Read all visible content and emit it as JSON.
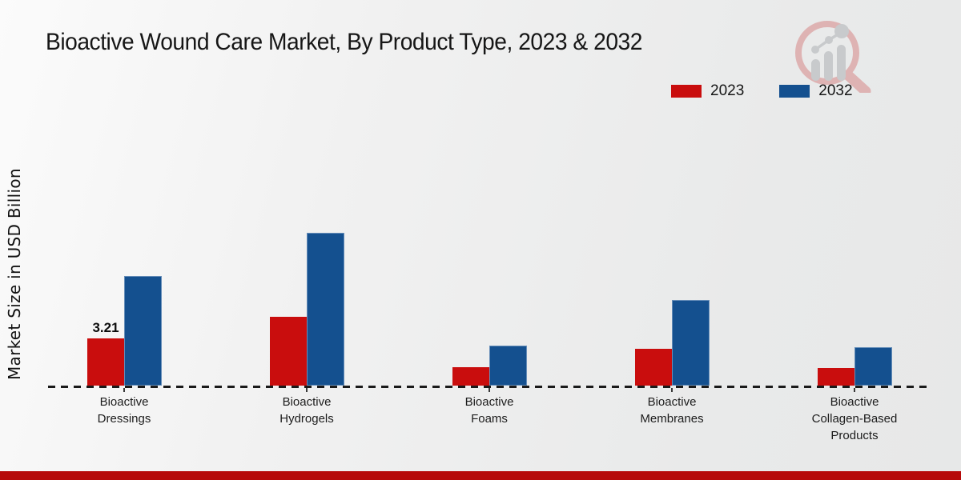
{
  "page": {
    "footer_bar_color": "#b60a0a",
    "logo_icon": "magnifier-bar-chart-logo",
    "background_top": "#fbfbfb",
    "background_bottom": "#e7e8e8"
  },
  "chart_data": {
    "type": "bar",
    "title": "Bioactive Wound Care Market, By Product Type, 2023 & 2032",
    "xlabel": "",
    "ylabel": "Market Size in USD Billion",
    "units": "USD Billion",
    "categories": [
      "Bioactive\nDressings",
      "Bioactive\nHydrogels",
      "Bioactive\nFoams",
      "Bioactive\nMembranes",
      "Bioactive\nCollagen-Based\nProducts"
    ],
    "series": [
      {
        "name": "2023",
        "color": "#c90d0d",
        "values": [
          3.21,
          4.68,
          1.25,
          2.5,
          1.2
        ],
        "shown_labels": [
          "3.21",
          null,
          null,
          null,
          null
        ]
      },
      {
        "name": "2032",
        "color": "#14508f",
        "values": [
          7.45,
          10.4,
          2.72,
          5.82,
          2.61
        ],
        "shown_labels": [
          null,
          null,
          null,
          null,
          null
        ]
      }
    ],
    "ylim": [
      0,
      11
    ],
    "grid": false,
    "legend_position": "top-right",
    "baseline_style": "dashed",
    "axis_ticks_visible": false
  }
}
